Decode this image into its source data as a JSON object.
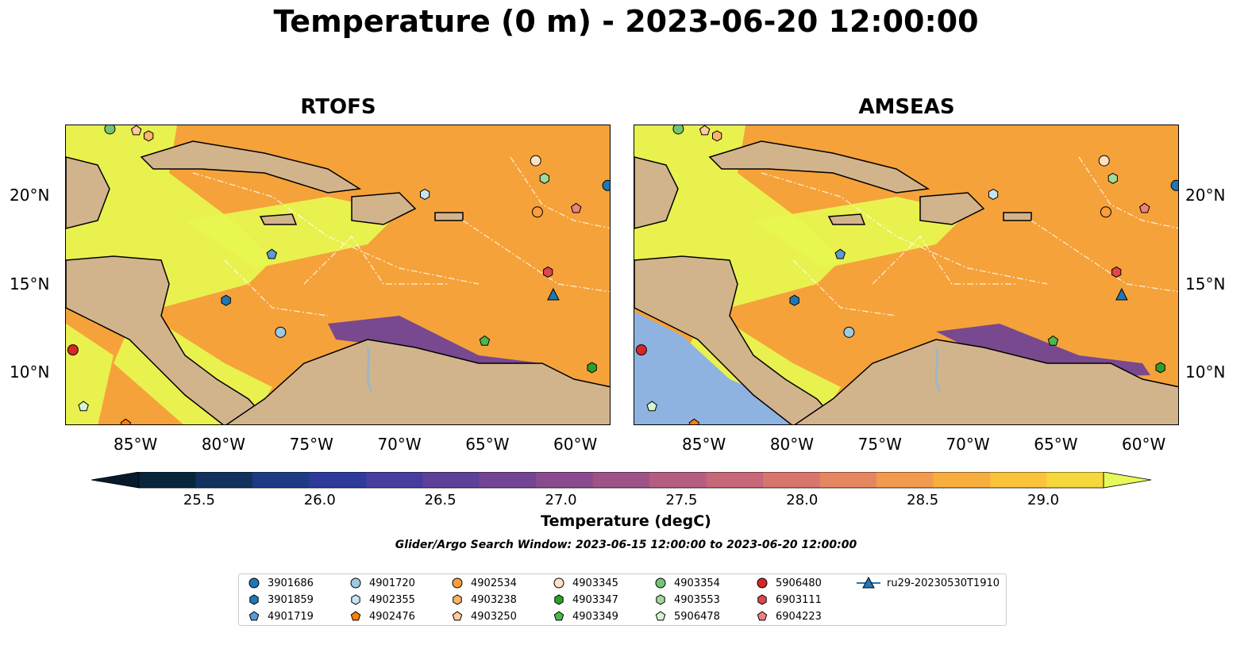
{
  "title": "Temperature (0 m) - 2023-06-20 12:00:00",
  "panels": [
    {
      "title": "RTOFS"
    },
    {
      "title": "AMSEAS"
    }
  ],
  "x_ticks": [
    "85°W",
    "80°W",
    "75°W",
    "70°W",
    "65°W",
    "60°W"
  ],
  "y_ticks": [
    "20°N",
    "15°N",
    "10°N"
  ],
  "colorbar": {
    "label": "Temperature (degC)",
    "ticks": [
      "25.5",
      "26.0",
      "26.5",
      "27.0",
      "27.5",
      "28.0",
      "28.5",
      "29.0"
    ],
    "min": 25.25,
    "max": 29.25,
    "step": 0.25,
    "colors": [
      "#08263b",
      "#12315e",
      "#1e3a85",
      "#2e3a9a",
      "#463d9e",
      "#5e3f99",
      "#744494",
      "#894b8e",
      "#9e5388",
      "#b45d80",
      "#c66878",
      "#d8756c",
      "#e68660",
      "#f29a4e",
      "#f8ae3e",
      "#fbc33a",
      "#f6d83c"
    ],
    "extend_low": "#061a2c",
    "extend_high": "#e8f85a"
  },
  "search_window": "Glider/Argo Search Window: 2023-06-15 12:00:00 to 2023-06-20 12:00:00",
  "colors": {
    "land": "#d2b48c",
    "warm_sea": "#f6a23a",
    "hot_sea": "#e8f550",
    "cool_sea": "#6a3f98",
    "pacific_amseas": "#8fb3e0",
    "rivers": "#9fb5c8"
  },
  "legend": [
    {
      "label": "3901686",
      "marker": "circle",
      "color": "#1f77b4"
    },
    {
      "label": "3901859",
      "marker": "hexagon",
      "color": "#1f77b4"
    },
    {
      "label": "4901719",
      "marker": "pentagon",
      "color": "#5a9bd4"
    },
    {
      "label": "4901720",
      "marker": "circle",
      "color": "#9ecae1"
    },
    {
      "label": "4902355",
      "marker": "hexagon",
      "color": "#c6e2f5"
    },
    {
      "label": "4902476",
      "marker": "pentagon",
      "color": "#ff7f0e"
    },
    {
      "label": "4902534",
      "marker": "circle",
      "color": "#ff9d3d"
    },
    {
      "label": "4903238",
      "marker": "hexagon",
      "color": "#ffb26b"
    },
    {
      "label": "4903250",
      "marker": "pentagon",
      "color": "#ffcc99"
    },
    {
      "label": "4903345",
      "marker": "circle",
      "color": "#ffe0c2"
    },
    {
      "label": "4903347",
      "marker": "hexagon",
      "color": "#2ca02c"
    },
    {
      "label": "4903349",
      "marker": "pentagon",
      "color": "#4cb84c"
    },
    {
      "label": "4903354",
      "marker": "circle",
      "color": "#74c476"
    },
    {
      "label": "4903553",
      "marker": "hexagon",
      "color": "#a1d99b"
    },
    {
      "label": "5906478",
      "marker": "pentagon",
      "color": "#d4f5d0"
    },
    {
      "label": "5906480",
      "marker": "circle",
      "color": "#d62728"
    },
    {
      "label": "6903111",
      "marker": "hexagon",
      "color": "#e0474a"
    },
    {
      "label": "6904223",
      "marker": "pentagon",
      "color": "#f08080"
    },
    {
      "label": "ru29-20230530T1910",
      "marker": "triangle-line",
      "color": "#1f77b4"
    }
  ],
  "floats": [
    {
      "id": "3901686",
      "lon": -58.2,
      "lat": 20.6
    },
    {
      "id": "3901859",
      "lon": -79.9,
      "lat": 14.1
    },
    {
      "id": "4901719",
      "lon": -77.3,
      "lat": 16.7
    },
    {
      "id": "4901720",
      "lon": -76.8,
      "lat": 12.3
    },
    {
      "id": "4902355",
      "lon": -68.6,
      "lat": 20.1
    },
    {
      "id": "4902476",
      "lon": -85.6,
      "lat": 7.1
    },
    {
      "id": "4902534",
      "lon": -62.2,
      "lat": 19.1
    },
    {
      "id": "4903238",
      "lon": -84.3,
      "lat": 23.4
    },
    {
      "id": "4903250",
      "lon": -85.0,
      "lat": 23.7
    },
    {
      "id": "4903345",
      "lon": -62.3,
      "lat": 22.0
    },
    {
      "id": "4903347",
      "lon": -59.1,
      "lat": 10.3
    },
    {
      "id": "4903349",
      "lon": -65.2,
      "lat": 11.8
    },
    {
      "id": "4903354",
      "lon": -86.5,
      "lat": 23.8
    },
    {
      "id": "4903553",
      "lon": -61.8,
      "lat": 21.0
    },
    {
      "id": "5906478",
      "lon": -88.0,
      "lat": 8.1
    },
    {
      "id": "5906480",
      "lon": -88.6,
      "lat": 11.3
    },
    {
      "id": "6903111",
      "lon": -61.6,
      "lat": 15.7
    },
    {
      "id": "6904223",
      "lon": -60.0,
      "lat": 19.3
    },
    {
      "id": "ru29-20230530T1910",
      "lon": -61.3,
      "lat": 14.4
    }
  ]
}
